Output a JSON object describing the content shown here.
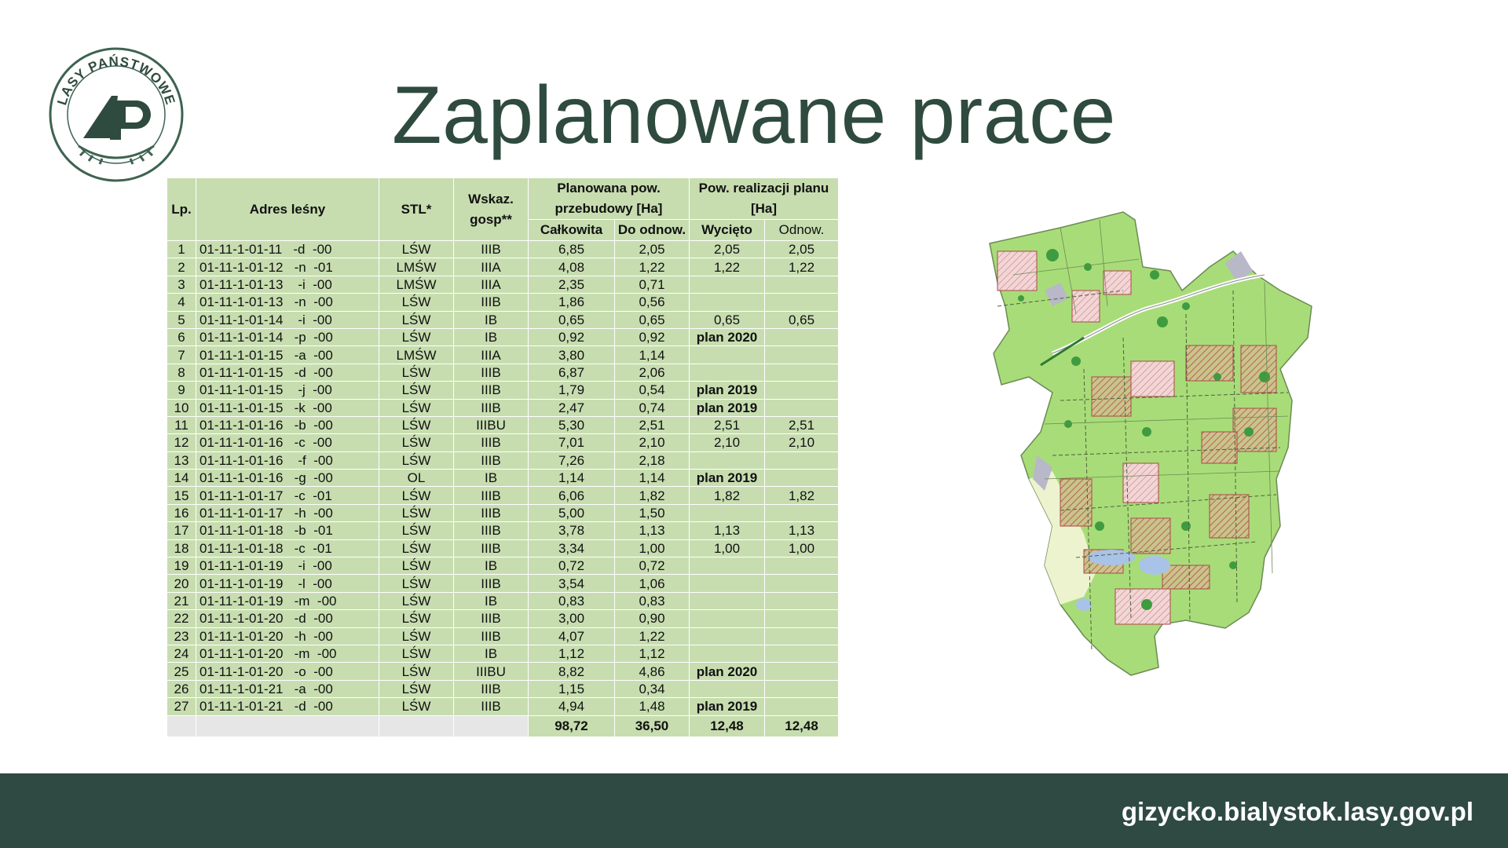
{
  "logo": {
    "text": "LASY PAŃSTWOWE",
    "icon": "lp-tree-logo"
  },
  "title": "Zaplanowane prace",
  "table": {
    "headers": {
      "lp": "Lp.",
      "adres": "Adres leśny",
      "stl": "STL*",
      "wskaz": "Wskaz. gosp**",
      "planowana": "Planowana pow. przebudowy [Ha]",
      "calkowita": "Całkowita",
      "do_odnow": "Do odnow.",
      "pow_real": "Pow. realizacji planu [Ha]",
      "wycieto": "Wycięto",
      "odnow": "Odnow."
    },
    "rows": [
      [
        "1",
        "01-11-1-01-11   -d  -00",
        "LŚW",
        "IIIB",
        "6,85",
        "2,05",
        "2,05",
        "2,05"
      ],
      [
        "2",
        "01-11-1-01-12   -n  -01",
        "LMŚW",
        "IIIA",
        "4,08",
        "1,22",
        "1,22",
        "1,22"
      ],
      [
        "3",
        "01-11-1-01-13    -i  -00",
        "LMŚW",
        "IIIA",
        "2,35",
        "0,71",
        "",
        ""
      ],
      [
        "4",
        "01-11-1-01-13   -n  -00",
        "LŚW",
        "IIIB",
        "1,86",
        "0,56",
        "",
        ""
      ],
      [
        "5",
        "01-11-1-01-14    -i  -00",
        "LŚW",
        "IB",
        "0,65",
        "0,65",
        "0,65",
        "0,65"
      ],
      [
        "6",
        "01-11-1-01-14   -p  -00",
        "LŚW",
        "IB",
        "0,92",
        "0,92",
        "plan 2020",
        ""
      ],
      [
        "7",
        "01-11-1-01-15   -a  -00",
        "LMŚW",
        "IIIA",
        "3,80",
        "1,14",
        "",
        ""
      ],
      [
        "8",
        "01-11-1-01-15   -d  -00",
        "LŚW",
        "IIIB",
        "6,87",
        "2,06",
        "",
        ""
      ],
      [
        "9",
        "01-11-1-01-15    -j  -00",
        "LŚW",
        "IIIB",
        "1,79",
        "0,54",
        "plan 2019",
        ""
      ],
      [
        "10",
        "01-11-1-01-15   -k  -00",
        "LŚW",
        "IIIB",
        "2,47",
        "0,74",
        "plan 2019",
        ""
      ],
      [
        "11",
        "01-11-1-01-16   -b  -00",
        "LŚW",
        "IIIBU",
        "5,30",
        "2,51",
        "2,51",
        "2,51"
      ],
      [
        "12",
        "01-11-1-01-16   -c  -00",
        "LŚW",
        "IIIB",
        "7,01",
        "2,10",
        "2,10",
        "2,10"
      ],
      [
        "13",
        "01-11-1-01-16    -f  -00",
        "LŚW",
        "IIIB",
        "7,26",
        "2,18",
        "",
        ""
      ],
      [
        "14",
        "01-11-1-01-16   -g  -00",
        "OL",
        "IB",
        "1,14",
        "1,14",
        "plan 2019",
        ""
      ],
      [
        "15",
        "01-11-1-01-17   -c  -01",
        "LŚW",
        "IIIB",
        "6,06",
        "1,82",
        "1,82",
        "1,82"
      ],
      [
        "16",
        "01-11-1-01-17   -h  -00",
        "LŚW",
        "IIIB",
        "5,00",
        "1,50",
        "",
        ""
      ],
      [
        "17",
        "01-11-1-01-18   -b  -01",
        "LŚW",
        "IIIB",
        "3,78",
        "1,13",
        "1,13",
        "1,13"
      ],
      [
        "18",
        "01-11-1-01-18   -c  -01",
        "LŚW",
        "IIIB",
        "3,34",
        "1,00",
        "1,00",
        "1,00"
      ],
      [
        "19",
        "01-11-1-01-19    -i  -00",
        "LŚW",
        "IB",
        "0,72",
        "0,72",
        "",
        ""
      ],
      [
        "20",
        "01-11-1-01-19    -l  -00",
        "LŚW",
        "IIIB",
        "3,54",
        "1,06",
        "",
        ""
      ],
      [
        "21",
        "01-11-1-01-19   -m  -00",
        "LŚW",
        "IB",
        "0,83",
        "0,83",
        "",
        ""
      ],
      [
        "22",
        "01-11-1-01-20   -d  -00",
        "LŚW",
        "IIIB",
        "3,00",
        "0,90",
        "",
        ""
      ],
      [
        "23",
        "01-11-1-01-20   -h  -00",
        "LŚW",
        "IIIB",
        "4,07",
        "1,22",
        "",
        ""
      ],
      [
        "24",
        "01-11-1-01-20   -m  -00",
        "LŚW",
        "IB",
        "1,12",
        "1,12",
        "",
        ""
      ],
      [
        "25",
        "01-11-1-01-20   -o  -00",
        "LŚW",
        "IIIBU",
        "8,82",
        "4,86",
        "plan 2020",
        ""
      ],
      [
        "26",
        "01-11-1-01-21   -a  -00",
        "LŚW",
        "IIIB",
        "1,15",
        "0,34",
        "",
        ""
      ],
      [
        "27",
        "01-11-1-01-21   -d  -00",
        "LŚW",
        "IIIB",
        "4,94",
        "1,48",
        "plan 2019",
        ""
      ]
    ],
    "totals": {
      "calkowita": "98,72",
      "do_odnow": "36,50",
      "wycieto": "12,48",
      "odnow": "12,48"
    }
  },
  "map": {
    "icon": "forest-district-map"
  },
  "footer": {
    "url": "gizycko.bialystok.lasy.gov.pl",
    "background": "#2e4a42"
  },
  "colors": {
    "title": "#2f4a3e",
    "table_cell": "#c7ddb0",
    "map_green": "#a8dc78"
  }
}
